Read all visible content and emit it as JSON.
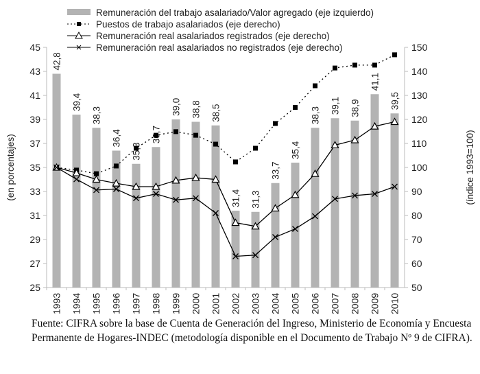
{
  "chart_data": {
    "type": "bar+line",
    "categories": [
      "1993",
      "1994",
      "1995",
      "1996",
      "1997",
      "1998",
      "1999",
      "2000",
      "2001",
      "2002",
      "2003",
      "2004",
      "2005",
      "2006",
      "2007",
      "2008",
      "2009",
      "2010"
    ],
    "bar_series": {
      "name": "Remuneración del trabajo asalariado/Valor agregado (eje izquierdo)",
      "axis": "left",
      "values": [
        42.8,
        39.4,
        38.3,
        36.4,
        35.3,
        36.7,
        39.0,
        38.8,
        38.5,
        31.4,
        31.3,
        33.7,
        35.4,
        38.3,
        39.1,
        38.9,
        41.1,
        39.5
      ],
      "labels": [
        "42,8",
        "39,4",
        "38,3",
        "36,4",
        "35,3",
        "36,7",
        "39,0",
        "38,8",
        "38,5",
        "31,4",
        "31,3",
        "33,7",
        "35,4",
        "38,3",
        "39,1",
        "38,9",
        "41,1",
        "39,5"
      ],
      "color": "#b3b3b3"
    },
    "series": [
      {
        "name": "Puestos de trabajo asalariados (eje derecho)",
        "axis": "right",
        "marker": "square",
        "style": "dotted",
        "values": [
          100,
          98.9,
          97.4,
          100.6,
          108,
          113.4,
          114.9,
          113.4,
          109.7,
          102.3,
          108,
          118.3,
          125,
          134,
          141.4,
          142.6,
          142.6,
          146.9
        ]
      },
      {
        "name": "Remuneración real asalariados registrados (eje derecho)",
        "axis": "right",
        "marker": "triangle",
        "style": "solid",
        "values": [
          100,
          97.7,
          95,
          93.4,
          92,
          92,
          94.6,
          95.7,
          95,
          77,
          75.5,
          83,
          88.6,
          97.4,
          109.3,
          111.4,
          117.1,
          119
        ]
      },
      {
        "name": "Remuneración real asalariados no registrados (eje derecho)",
        "axis": "right",
        "marker": "x",
        "style": "solid",
        "values": [
          100,
          95.1,
          90.6,
          91,
          87.2,
          89,
          86.5,
          87.2,
          81,
          63,
          63.5,
          71,
          74.4,
          79.7,
          86.9,
          88.3,
          89,
          92
        ]
      }
    ],
    "left_axis": {
      "label": "(en porcentajes)",
      "range": [
        25,
        45
      ],
      "ticks": [
        "25",
        "27",
        "29",
        "31",
        "33",
        "35",
        "37",
        "39",
        "41",
        "43",
        "45"
      ]
    },
    "right_axis": {
      "label": "(índice 1993=100)",
      "range": [
        50,
        150
      ],
      "ticks": [
        "50",
        "60",
        "70",
        "80",
        "90",
        "100",
        "110",
        "120",
        "130",
        "140",
        "150"
      ]
    },
    "legend_position": "top",
    "grid": false
  },
  "footer": {
    "line1": "Fuente: CIFRA sobre la base de Cuenta de Generación del Ingreso, Ministerio de Economía y Encuesta",
    "line2": "Permanente de Hogares-INDEC (metodología disponible en el Documento de Trabajo Nº 9 de CIFRA)."
  }
}
